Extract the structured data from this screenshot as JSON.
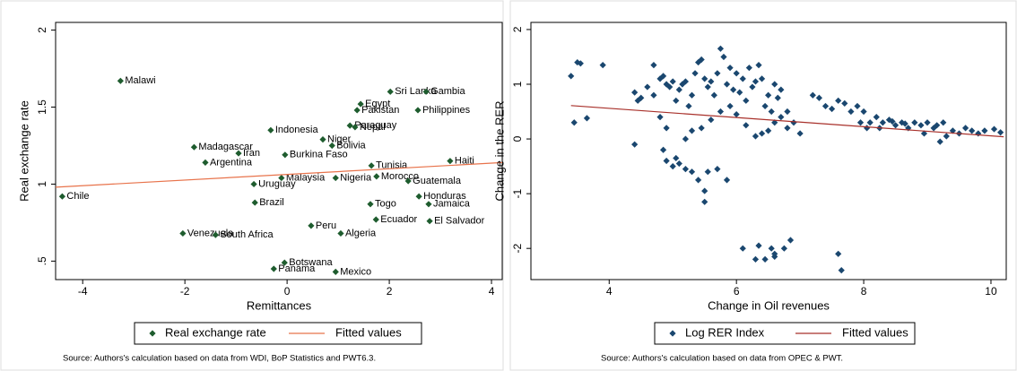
{
  "chart_data": [
    {
      "type": "scatter",
      "x_label": "Remittances",
      "y_label": "Real exchange rate",
      "xlim": [
        -4.53,
        4.21
      ],
      "ylim": [
        0.38,
        2.05
      ],
      "xticks": [
        -4,
        -2,
        0,
        2,
        4
      ],
      "yticks": [
        {
          "value": 0.5,
          "label": ".5"
        },
        1,
        1.5,
        2
      ],
      "note": "Source: Authors's calculation based on data from WDI, BoP Statistics and PWT6.3.",
      "series": [
        {
          "name": "Real exchange rate",
          "style": "markers",
          "color": "#1e5c2e",
          "labels": [
            "Malawi",
            "Chile",
            "Sri Lanka",
            "Gambia",
            "Egypt",
            "Pakistan",
            "Philippines",
            "Indonesia",
            "Paraguay",
            "Nepal",
            "Niger",
            "Bolivia",
            "Madagascar",
            "Iran",
            "Burkina Faso",
            "Argentina",
            "Tunisia",
            "Haiti",
            "Malaysia",
            "Nigeria",
            "Morocco",
            "Guatemala",
            "Uruguay",
            "Honduras",
            "Togo",
            "Jamaica",
            "Brazil",
            "Ecuador",
            "El Salvador",
            "Peru",
            "Venezuela",
            "South Africa",
            "Algeria",
            "Botswana",
            "Panama",
            "Mexico"
          ],
          "x": [
            -3.26,
            -4.4,
            2.02,
            2.72,
            1.44,
            1.37,
            2.56,
            -0.32,
            1.23,
            1.33,
            0.7,
            0.88,
            -1.82,
            -0.95,
            -0.04,
            -1.6,
            1.65,
            3.19,
            -0.11,
            0.95,
            1.75,
            2.37,
            -0.65,
            2.58,
            1.63,
            2.77,
            -0.63,
            1.74,
            2.79,
            0.47,
            -2.04,
            -1.4,
            1.05,
            -0.05,
            -0.26,
            0.95
          ],
          "values": [
            1.67,
            0.92,
            1.6,
            1.6,
            1.52,
            1.48,
            1.48,
            1.35,
            1.38,
            1.37,
            1.29,
            1.25,
            1.24,
            1.2,
            1.19,
            1.14,
            1.12,
            1.15,
            1.04,
            1.04,
            1.05,
            1.02,
            1.0,
            0.92,
            0.87,
            0.87,
            0.88,
            0.77,
            0.76,
            0.73,
            0.68,
            0.67,
            0.68,
            0.49,
            0.45,
            0.43
          ]
        },
        {
          "name": "Fitted values",
          "style": "line",
          "color": "#e8734b",
          "x": [
            -4.53,
            4.21
          ],
          "values": [
            0.98,
            1.14
          ]
        }
      ]
    },
    {
      "type": "scatter",
      "x_label": "Change in Oil revenues",
      "y_label": "Change in the RER",
      "xlim": [
        2.77,
        10.24
      ],
      "ylim": [
        -2.57,
        2.13
      ],
      "xticks": [
        4,
        6,
        8,
        10
      ],
      "yticks": [
        -2,
        -1,
        0,
        1,
        2
      ],
      "note": "Source: Authors's calculation based on data from OPEC & PWT.",
      "series": [
        {
          "name": "Log RER Index",
          "style": "markers",
          "color": "#1a476f",
          "x": [
            3.4,
            3.5,
            3.55,
            3.45,
            3.65,
            3.9,
            4.4,
            4.45,
            4.5,
            4.4,
            4.6,
            4.7,
            4.7,
            4.8,
            4.85,
            4.9,
            4.95,
            5.0,
            5.05,
            5.1,
            5.15,
            5.2,
            5.25,
            5.3,
            5.35,
            5.4,
            5.45,
            5.5,
            5.55,
            5.6,
            5.65,
            5.7,
            5.75,
            5.8,
            5.85,
            5.9,
            5.95,
            6.0,
            6.05,
            6.1,
            6.15,
            6.2,
            6.25,
            6.3,
            6.35,
            6.4,
            6.45,
            6.5,
            6.55,
            6.6,
            6.65,
            6.7,
            6.8,
            6.9,
            7.0,
            4.8,
            4.9,
            4.85,
            4.9,
            5.0,
            5.05,
            5.1,
            5.2,
            5.3,
            5.4,
            5.5,
            5.5,
            5.55,
            5.7,
            5.85,
            5.2,
            5.3,
            5.45,
            5.6,
            5.75,
            5.9,
            6.0,
            6.15,
            6.3,
            6.4,
            6.5,
            6.6,
            6.7,
            6.8,
            7.2,
            7.3,
            7.4,
            7.5,
            7.6,
            7.7,
            7.8,
            7.9,
            8.0,
            8.1,
            8.2,
            8.3,
            8.4,
            8.5,
            8.6,
            8.7,
            8.8,
            8.9,
            9.0,
            9.1,
            9.2,
            9.3,
            9.4,
            9.5,
            9.6,
            9.7,
            9.8,
            9.9,
            10.05,
            10.15,
            8.25,
            8.45,
            8.65,
            8.95,
            9.15,
            9.25,
            7.95,
            8.05,
            6.1,
            6.35,
            6.45,
            6.55,
            6.6,
            6.6,
            6.75,
            6.85,
            6.3,
            7.6,
            7.65
          ],
          "values": [
            1.15,
            1.4,
            1.38,
            0.3,
            0.38,
            1.35,
            0.85,
            0.7,
            0.75,
            -0.1,
            0.95,
            0.8,
            1.35,
            1.1,
            1.15,
            1.0,
            0.95,
            1.05,
            0.7,
            0.9,
            1.0,
            1.05,
            0.6,
            0.8,
            1.2,
            1.4,
            1.45,
            1.1,
            0.95,
            1.05,
            0.8,
            1.2,
            1.65,
            1.5,
            1.0,
            1.3,
            0.9,
            1.2,
            0.85,
            1.1,
            0.7,
            1.3,
            0.95,
            1.05,
            1.35,
            1.1,
            0.6,
            0.8,
            0.5,
            1.0,
            0.75,
            0.9,
            0.5,
            0.3,
            0.1,
            0.4,
            0.2,
            -0.2,
            -0.4,
            -0.5,
            -0.35,
            -0.45,
            -0.55,
            -0.6,
            -0.75,
            -1.15,
            -0.95,
            -0.6,
            -0.55,
            -0.75,
            0.0,
            0.15,
            0.2,
            0.35,
            0.5,
            0.6,
            0.45,
            0.25,
            0.05,
            0.1,
            0.15,
            0.3,
            0.4,
            0.2,
            0.8,
            0.75,
            0.6,
            0.55,
            0.7,
            0.65,
            0.5,
            0.6,
            0.5,
            0.3,
            0.4,
            0.3,
            0.35,
            0.25,
            0.3,
            0.2,
            0.3,
            0.25,
            0.3,
            0.2,
            -0.05,
            0.05,
            0.15,
            0.1,
            0.2,
            0.15,
            0.1,
            0.15,
            0.18,
            0.12,
            0.2,
            0.32,
            0.28,
            0.1,
            0.25,
            0.3,
            0.3,
            0.2,
            -2.0,
            -1.95,
            -2.2,
            -2.0,
            -2.15,
            -2.1,
            -2.0,
            -1.85,
            -2.2,
            -2.1,
            -2.4
          ]
        },
        {
          "name": "Fitted values",
          "style": "line",
          "color": "#a8302a",
          "x": [
            3.4,
            10.2
          ],
          "values": [
            0.61,
            0.04
          ]
        }
      ]
    }
  ]
}
